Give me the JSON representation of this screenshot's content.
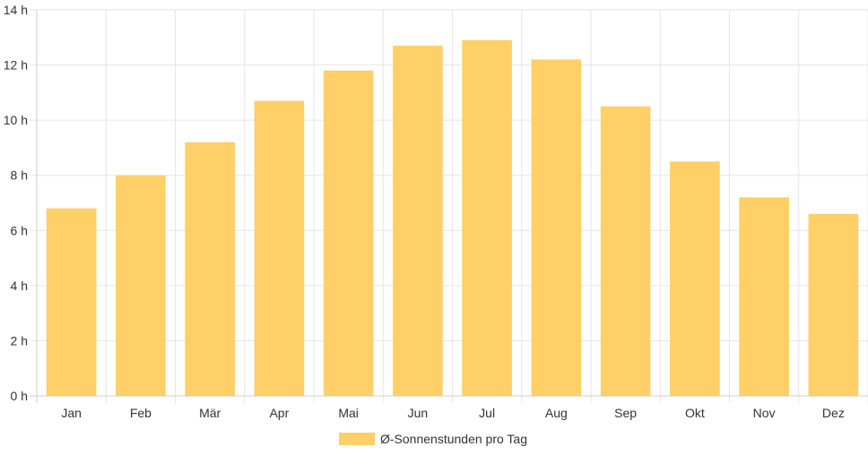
{
  "chart_data": {
    "type": "bar",
    "categories": [
      "Jan",
      "Feb",
      "Mär",
      "Apr",
      "Mai",
      "Jun",
      "Jul",
      "Aug",
      "Sep",
      "Okt",
      "Nov",
      "Dez"
    ],
    "series": [
      {
        "name": "Ø-Sonnenstunden pro Tag",
        "values": [
          6.8,
          8.0,
          9.2,
          10.7,
          11.8,
          12.7,
          12.9,
          12.2,
          10.5,
          8.5,
          7.2,
          6.6
        ],
        "color": "#fed067"
      }
    ],
    "ylim": [
      0,
      14
    ],
    "y_ticks": [
      "0 h",
      "2 h",
      "4 h",
      "6 h",
      "8 h",
      "10 h",
      "12 h",
      "14 h"
    ],
    "grid": true,
    "legend_position": "bottom",
    "grid_color": "#e6e6e6"
  }
}
